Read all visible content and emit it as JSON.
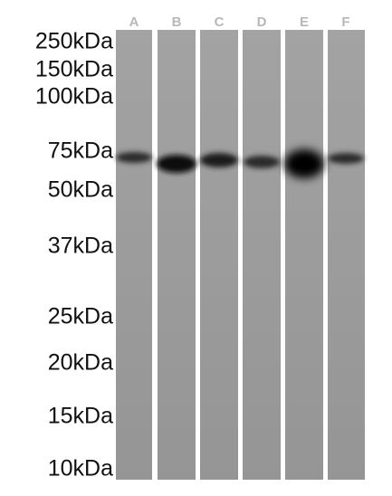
{
  "markers": [
    "250kDa",
    "150kDa",
    "100kDa",
    "75kDa",
    "50kDa",
    "37kDa",
    "25kDa",
    "20kDa",
    "15kDa",
    "10kDa"
  ],
  "lanes": [
    "A",
    "B",
    "C",
    "D",
    "E",
    "F"
  ]
}
